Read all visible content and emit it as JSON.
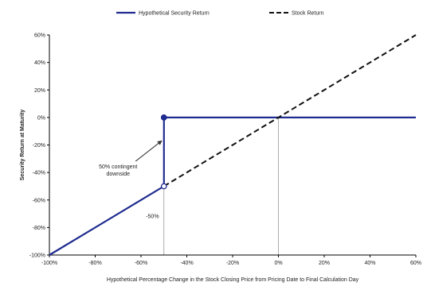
{
  "chart_data": {
    "type": "line",
    "title": "",
    "xlabel": "Hypothetical Percentage Change in the Stock Closing Price from Pricing Date to Final Calculation Day",
    "ylabel": "Security Return at Maturity",
    "xlim": [
      -100,
      60
    ],
    "ylim": [
      -100,
      60
    ],
    "x_ticks": [
      -100,
      -80,
      -60,
      -40,
      -20,
      0,
      20,
      40,
      60
    ],
    "y_ticks": [
      -100,
      -80,
      -60,
      -40,
      -20,
      0,
      20,
      40,
      60
    ],
    "x_tick_labels": [
      "-100%",
      "-80%",
      "-60%",
      "-40%",
      "-20%",
      "0%",
      "20%",
      "40%",
      "60%"
    ],
    "y_tick_labels": [
      "-100%",
      "-80%",
      "-60%",
      "-40%",
      "-20%",
      "0%",
      "20%",
      "40%",
      "60%"
    ],
    "grid": false,
    "legend_position": "top",
    "series": [
      {
        "name": "Hypothetical Security Return",
        "color": "#1f2c8f",
        "style": "solid",
        "segments": [
          [
            [
              -100,
              -100
            ],
            [
              -50,
              -50
            ],
            [
              -50,
              0
            ],
            [
              60,
              0
            ]
          ]
        ]
      },
      {
        "name": "Stock Return",
        "color": "#111111",
        "style": "dashed",
        "segments": [
          [
            [
              -50,
              -50
            ],
            [
              60,
              60
            ]
          ]
        ]
      }
    ],
    "markers": [
      {
        "x": -50,
        "y": 0,
        "fill": "#1f2c8f"
      },
      {
        "x": -50,
        "y": -50,
        "fill": "#ffffff"
      }
    ],
    "reference_lines": [
      {
        "x": -50
      },
      {
        "x": 0
      }
    ],
    "annotations": [
      {
        "text_lines": [
          "50% contingent",
          "downside"
        ],
        "x": -70,
        "y": -37,
        "arrow_to": [
          -51,
          -17
        ]
      },
      {
        "text_lines": [
          "-50%"
        ],
        "x": -55,
        "y": -73
      }
    ]
  }
}
